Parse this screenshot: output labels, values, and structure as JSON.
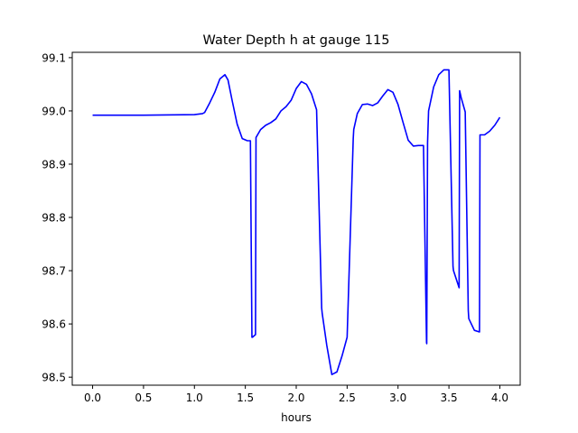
{
  "chart_data": {
    "type": "line",
    "title": "Water Depth h at gauge 115",
    "xlabel": "hours",
    "ylabel": "",
    "xlim": [
      -0.2,
      4.2
    ],
    "ylim": [
      98.485,
      99.11
    ],
    "xticks": [
      0.0,
      0.5,
      1.0,
      1.5,
      2.0,
      2.5,
      3.0,
      3.5,
      4.0
    ],
    "xtick_labels": [
      "0.0",
      "0.5",
      "1.0",
      "1.5",
      "2.0",
      "2.5",
      "3.0",
      "3.5",
      "4.0"
    ],
    "yticks": [
      98.5,
      98.6,
      98.7,
      98.8,
      98.9,
      99.0,
      99.1
    ],
    "ytick_labels": [
      "98.5",
      "98.6",
      "98.7",
      "98.8",
      "98.9",
      "99.0",
      "99.1"
    ],
    "grid": false,
    "series": [
      {
        "color": "#0000ff",
        "x": [
          0.0,
          0.5,
          1.0,
          1.08,
          1.1,
          1.15,
          1.2,
          1.25,
          1.3,
          1.33,
          1.37,
          1.42,
          1.47,
          1.52,
          1.55,
          1.565,
          1.57,
          1.6,
          1.605,
          1.65,
          1.7,
          1.75,
          1.8,
          1.85,
          1.9,
          1.95,
          2.0,
          2.05,
          2.1,
          2.15,
          2.2,
          2.25,
          2.255,
          2.3,
          2.35,
          2.4,
          2.45,
          2.5,
          2.56,
          2.565,
          2.6,
          2.65,
          2.7,
          2.75,
          2.8,
          2.85,
          2.9,
          2.95,
          3.0,
          3.05,
          3.1,
          3.15,
          3.2,
          3.25,
          3.28,
          3.282,
          3.29,
          3.295,
          3.3,
          3.35,
          3.4,
          3.45,
          3.5,
          3.54,
          3.545,
          3.6,
          3.605,
          3.62,
          3.66,
          3.69,
          3.695,
          3.75,
          3.8,
          3.805,
          3.85,
          3.9,
          3.95,
          4.0
        ],
        "y": [
          98.992,
          98.992,
          98.993,
          98.995,
          98.997,
          99.015,
          99.035,
          99.06,
          99.068,
          99.058,
          99.02,
          98.975,
          98.948,
          98.944,
          98.944,
          98.575,
          98.575,
          98.58,
          98.95,
          98.965,
          98.973,
          98.978,
          98.985,
          99.0,
          99.008,
          99.02,
          99.042,
          99.055,
          99.05,
          99.032,
          99.002,
          98.63,
          98.62,
          98.56,
          98.505,
          98.51,
          98.54,
          98.575,
          98.948,
          98.965,
          98.995,
          99.012,
          99.013,
          99.01,
          99.015,
          99.028,
          99.04,
          99.035,
          99.012,
          98.978,
          98.945,
          98.934,
          98.935,
          98.935,
          98.565,
          98.563,
          98.94,
          98.97,
          99.0,
          99.045,
          99.068,
          99.077,
          99.077,
          98.708,
          98.7,
          98.668,
          99.038,
          99.025,
          98.998,
          98.625,
          98.61,
          98.588,
          98.585,
          98.955,
          98.955,
          98.962,
          98.973,
          98.988
        ]
      }
    ]
  }
}
